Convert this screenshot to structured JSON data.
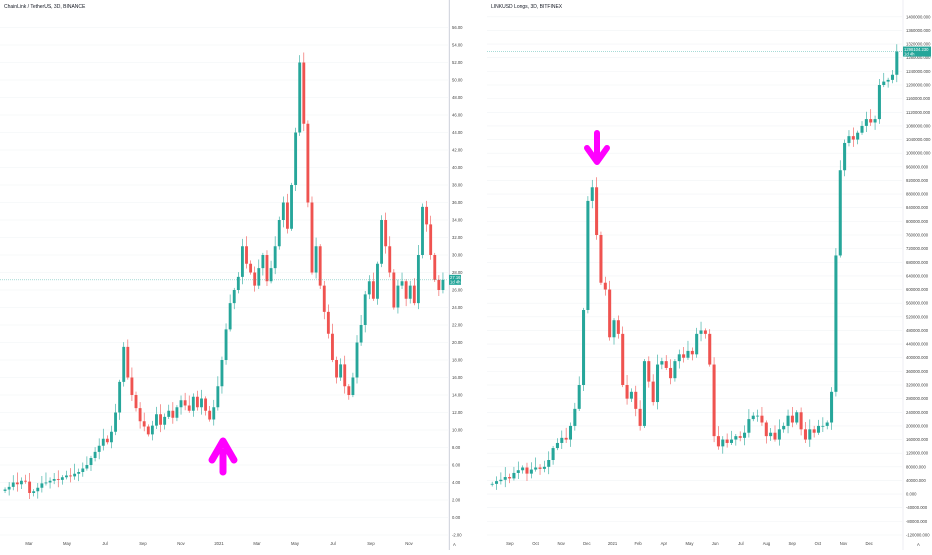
{
  "colors": {
    "up": "#26a69a",
    "down": "#ef5350",
    "grid": "#f0f3f6",
    "arrow": "#ff00ff",
    "badge": "#26a69a",
    "axis_text": "#444444"
  },
  "chart_data": [
    {
      "type": "candlestick",
      "title": "ChainLink / TetherUS, 3D, BINANCE",
      "unit": "",
      "y_ticks": [
        "56.00",
        "54.00",
        "52.00",
        "50.00",
        "48.00",
        "46.00",
        "44.00",
        "42.00",
        "40.00",
        "38.00",
        "36.00",
        "34.00",
        "32.00",
        "30.00",
        "28.00",
        "26.00",
        "24.00",
        "22.00",
        "20.00",
        "18.00",
        "16.00",
        "14.00",
        "12.00",
        "10.00",
        "8.00",
        "6.00",
        "4.00",
        "2.00",
        "0.00",
        "-2.00"
      ],
      "x_ticks": [
        "Mar",
        "May",
        "Jul",
        "Sep",
        "Nov",
        "2021",
        "Mar",
        "May",
        "Jul",
        "Sep",
        "Nov"
      ],
      "ylim": [
        -2,
        58
      ],
      "last_price": "27.16",
      "last_price_sub": "1d 4h",
      "annotation": "up-arrow near the Jan 2021 low",
      "series_close": [
        3.2,
        3.5,
        4.0,
        3.8,
        4.2,
        4.1,
        2.8,
        3.0,
        3.4,
        3.9,
        4.0,
        4.2,
        4.4,
        4.3,
        4.6,
        4.8,
        4.7,
        5.0,
        5.2,
        5.6,
        6.0,
        6.8,
        7.5,
        8.2,
        9.0,
        8.6,
        9.8,
        12.0,
        15.5,
        19.5,
        16.0,
        14.0,
        12.5,
        11.0,
        10.4,
        9.5,
        10.5,
        11.8,
        10.6,
        11.5,
        12.2,
        11.4,
        12.6,
        13.4,
        12.8,
        12.2,
        13.8,
        12.6,
        13.6,
        12.2,
        11.2,
        12.6,
        15.0,
        18.0,
        21.5,
        24.5,
        26.0,
        27.5,
        31.0,
        29.0,
        28.0,
        26.5,
        28.5,
        30.0,
        27.0,
        28.5,
        31.0,
        34.0,
        36.0,
        33.0,
        38.0,
        44.0,
        52.0,
        45.0,
        36.0,
        28.0,
        31.0,
        26.5,
        23.5,
        21.0,
        18.0,
        16.0,
        17.5,
        15.0,
        14.0,
        16.0,
        20.0,
        22.0,
        25.5,
        27.0,
        25.0,
        29.0,
        34.0,
        31.0,
        28.0,
        24.0,
        26.5,
        27.0,
        25.0,
        26.5,
        24.5,
        30.0,
        35.5,
        33.5,
        30.0,
        27.16,
        26.0,
        27.16
      ]
    },
    {
      "type": "candlestick",
      "title": "LINKUSD Longs, 3D, BITFINEX",
      "unit": "",
      "y_ticks": [
        "1400000.000",
        "1360000.000",
        "1320000.000",
        "1280000.000",
        "1240000.000",
        "1200000.000",
        "1160000.000",
        "1120000.000",
        "1080000.000",
        "1040000.000",
        "1000000.000",
        "960000.000",
        "920000.000",
        "880000.000",
        "840000.000",
        "800000.000",
        "760000.000",
        "720000.000",
        "680000.000",
        "640000.000",
        "600000.000",
        "560000.000",
        "520000.000",
        "480000.000",
        "440000.000",
        "400000.000",
        "360000.000",
        "320000.000",
        "280000.000",
        "240000.000",
        "200000.000",
        "160000.000",
        "120000.000",
        "80000.000",
        "40000.000",
        "0.000",
        "-40000.000",
        "-80000.000",
        "-120000.000"
      ],
      "x_ticks": [
        "Sep",
        "Oct",
        "Nov",
        "Dec",
        "2021",
        "Feb",
        "Apr",
        "May",
        "Jun",
        "Jul",
        "Aug",
        "Sep",
        "Oct",
        "Nov",
        "Dec"
      ],
      "ylim": [
        -120000,
        1420000
      ],
      "last_price": "1298104.230",
      "last_price_sub": "1d 4h",
      "annotation": "down-arrow near the Jan 2021 peak",
      "series_close": [
        30000,
        38000,
        42000,
        50000,
        46000,
        62000,
        70000,
        78000,
        60000,
        72000,
        78000,
        74000,
        80000,
        100000,
        135000,
        150000,
        165000,
        160000,
        200000,
        250000,
        320000,
        540000,
        860000,
        900000,
        760000,
        620000,
        600000,
        460000,
        510000,
        470000,
        320000,
        280000,
        300000,
        250000,
        200000,
        390000,
        330000,
        270000,
        380000,
        390000,
        370000,
        340000,
        390000,
        410000,
        400000,
        420000,
        410000,
        470000,
        480000,
        470000,
        380000,
        170000,
        140000,
        160000,
        150000,
        160000,
        170000,
        165000,
        180000,
        220000,
        230000,
        230000,
        210000,
        170000,
        180000,
        160000,
        190000,
        200000,
        230000,
        210000,
        240000,
        190000,
        160000,
        190000,
        180000,
        200000,
        200000,
        210000,
        300000,
        700000,
        950000,
        1030000,
        1050000,
        1040000,
        1060000,
        1080000,
        1100000,
        1090000,
        1100000,
        1200000,
        1210000,
        1215000,
        1230000,
        1298104
      ]
    }
  ]
}
